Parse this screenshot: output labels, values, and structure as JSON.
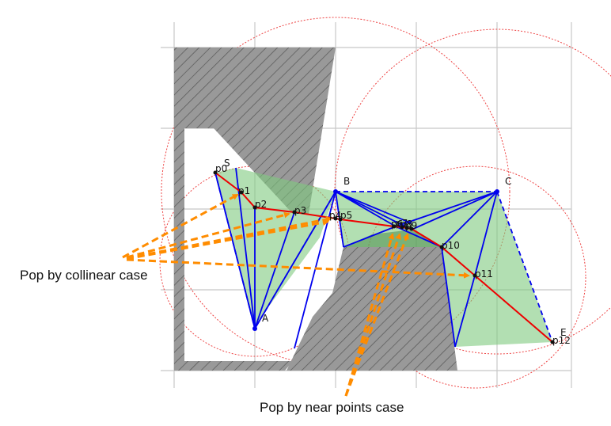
{
  "captions": {
    "collinear": "Pop by collinear case",
    "near_points": "Pop by near points case"
  },
  "labels": {
    "S": "S",
    "A": "A",
    "B": "B",
    "C": "C",
    "E": "E",
    "p0": "p0",
    "p1": "p1",
    "p2": "p2",
    "p3": "p3",
    "p4": "p4",
    "p5": "p5",
    "p6": "p6",
    "p7": "p7",
    "p8": "p8",
    "p9": "p9",
    "p10": "p10",
    "p11": "p11",
    "p12": "p12"
  },
  "colors": {
    "obstacle": "#999999",
    "hatch": "#555555",
    "funnel_fill": "#7fc97f",
    "triangulation": "#0000ee",
    "path": "#ee0000",
    "arrow": "#ff8c00",
    "circle": "#ee4444",
    "grid": "#c8c8c8"
  }
}
